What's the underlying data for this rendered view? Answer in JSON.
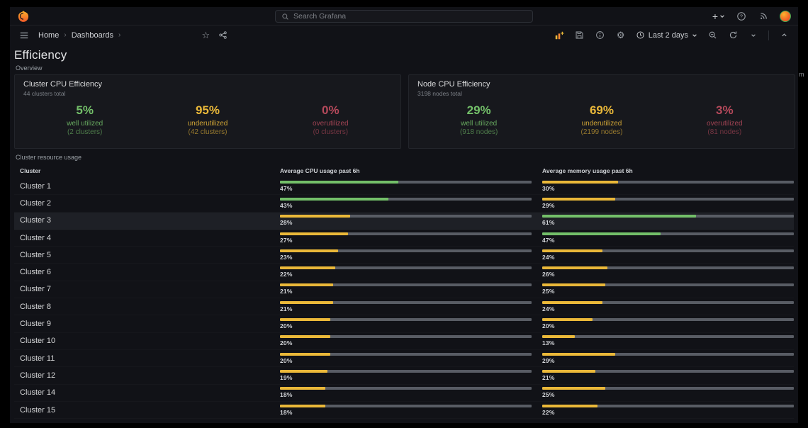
{
  "topnav": {
    "search_placeholder": "Search Grafana",
    "new_label": "+"
  },
  "breadcrumb": {
    "items": [
      "Home",
      "Dashboards"
    ],
    "separator": "›"
  },
  "toolbar": {
    "time_range_label": "Last 2 days"
  },
  "icons": {
    "star_glyph": "☆",
    "gear_glyph": "⚙"
  },
  "page": {
    "title": "Efficiency",
    "sections": {
      "overview": "Overview",
      "usage": "Cluster resource usage"
    }
  },
  "colors": {
    "tones": {
      "green": "#73bf69",
      "yellow": "#eab839",
      "red": "#b5495b"
    },
    "bar_track": "#585c64"
  },
  "efficiency_panels": [
    {
      "title": "Cluster CPU Efficiency",
      "subtitle": "44 clusters total",
      "stats": [
        {
          "value": "5%",
          "label": "well utilized",
          "detail": "(2 clusters)",
          "tone": "green"
        },
        {
          "value": "95%",
          "label": "underutilized",
          "detail": "(42 clusters)",
          "tone": "yellow"
        },
        {
          "value": "0%",
          "label": "overutilized",
          "detail": "(0 clusters)",
          "tone": "red"
        }
      ]
    },
    {
      "title": "Node CPU Efficiency",
      "subtitle": "3198 nodes total",
      "stats": [
        {
          "value": "29%",
          "label": "well utilized",
          "detail": "(918 nodes)",
          "tone": "green"
        },
        {
          "value": "69%",
          "label": "underutilized",
          "detail": "(2199 nodes)",
          "tone": "yellow"
        },
        {
          "value": "3%",
          "label": "overutilized",
          "detail": "(81 nodes)",
          "tone": "red"
        }
      ]
    }
  ],
  "chart_data": {
    "type": "table",
    "title": "Cluster resource usage",
    "columns": [
      "Cluster",
      "Average CPU usage past 6h",
      "Average memory usage past 6h"
    ],
    "value_unit": "%",
    "value_range": [
      0,
      100
    ],
    "thresholds": {
      "green_from": 40
    },
    "rows": [
      {
        "cluster": "Cluster 1",
        "cpu": 47,
        "mem": 30
      },
      {
        "cluster": "Cluster 2",
        "cpu": 43,
        "mem": 29
      },
      {
        "cluster": "Cluster 3",
        "cpu": 28,
        "mem": 61,
        "highlight": true
      },
      {
        "cluster": "Cluster 4",
        "cpu": 27,
        "mem": 47
      },
      {
        "cluster": "Cluster 5",
        "cpu": 23,
        "mem": 24
      },
      {
        "cluster": "Cluster 6",
        "cpu": 22,
        "mem": 26
      },
      {
        "cluster": "Cluster 7",
        "cpu": 21,
        "mem": 25
      },
      {
        "cluster": "Cluster 8",
        "cpu": 21,
        "mem": 24
      },
      {
        "cluster": "Cluster 9",
        "cpu": 20,
        "mem": 20
      },
      {
        "cluster": "Cluster 10",
        "cpu": 20,
        "mem": 13
      },
      {
        "cluster": "Cluster 11",
        "cpu": 20,
        "mem": 29
      },
      {
        "cluster": "Cluster 12",
        "cpu": 19,
        "mem": 21
      },
      {
        "cluster": "Cluster 14",
        "cpu": 18,
        "mem": 25
      },
      {
        "cluster": "Cluster 15",
        "cpu": 18,
        "mem": 22
      }
    ]
  },
  "edge_fragment": "m"
}
